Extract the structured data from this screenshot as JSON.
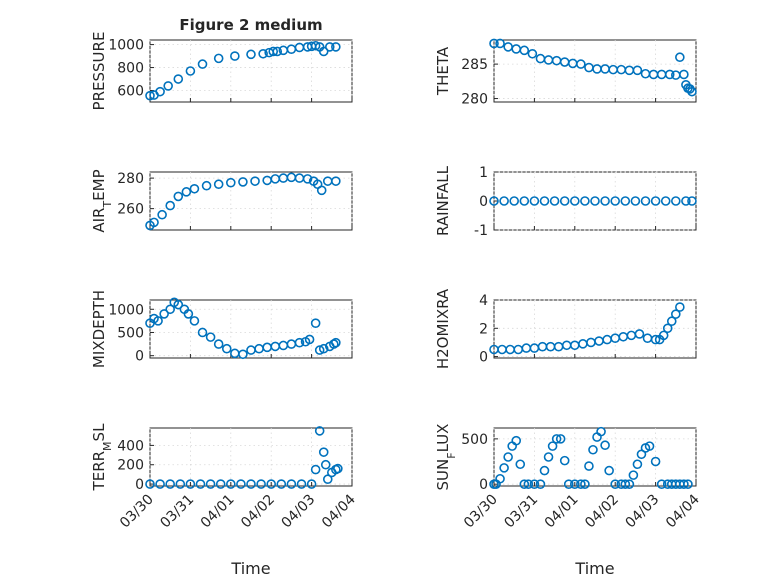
{
  "figure_title": "Figure 2 medium",
  "colors": {
    "series": "#0072BD",
    "axes": "#262626",
    "grid": "#d9d9d9"
  },
  "chart_data": [
    {
      "type": "scatter",
      "title": "Figure 2 medium",
      "ylabel": "PRESSURE",
      "xlabel": "",
      "xticks": [
        "03/30",
        "03/31",
        "04/01",
        "04/02",
        "04/03",
        "04/04"
      ],
      "xlim": [
        0,
        5
      ],
      "ylim": [
        500,
        1040
      ],
      "yticks": [
        600,
        800,
        1000
      ],
      "grid": true,
      "x": [
        0.0,
        0.1,
        0.25,
        0.45,
        0.7,
        1.0,
        1.3,
        1.7,
        2.1,
        2.5,
        2.8,
        2.95,
        3.05,
        3.15,
        3.3,
        3.5,
        3.7,
        3.9,
        4.0,
        4.1,
        4.2,
        4.3,
        4.45,
        4.6
      ],
      "y": [
        555,
        560,
        590,
        640,
        700,
        770,
        830,
        880,
        900,
        915,
        920,
        930,
        940,
        940,
        950,
        960,
        975,
        980,
        985,
        990,
        980,
        940,
        980,
        980
      ]
    },
    {
      "type": "scatter",
      "title": "",
      "ylabel": "THETA",
      "xlabel": "",
      "xticks": [
        "03/30",
        "03/31",
        "04/01",
        "04/02",
        "04/03",
        "04/04"
      ],
      "xlim": [
        0,
        5
      ],
      "ylim": [
        279.5,
        288.5
      ],
      "yticks": [
        280,
        285
      ],
      "grid": true,
      "x": [
        0.0,
        0.15,
        0.35,
        0.55,
        0.75,
        0.95,
        1.15,
        1.35,
        1.55,
        1.75,
        1.95,
        2.15,
        2.35,
        2.55,
        2.75,
        2.95,
        3.15,
        3.35,
        3.55,
        3.75,
        3.95,
        4.15,
        4.35,
        4.5,
        4.6,
        4.7,
        4.75,
        4.8,
        4.85,
        4.9
      ],
      "y": [
        288.0,
        288.0,
        287.5,
        287.2,
        287.0,
        286.5,
        285.8,
        285.6,
        285.5,
        285.3,
        285.1,
        285.0,
        284.5,
        284.3,
        284.3,
        284.2,
        284.2,
        284.1,
        284.1,
        283.6,
        283.5,
        283.5,
        283.5,
        283.4,
        286.0,
        283.5,
        282.0,
        281.5,
        281.4,
        281.0
      ]
    },
    {
      "type": "scatter",
      "title": "",
      "ylabel": "AIR_TEMP",
      "xlabel": "",
      "xticks": [
        "03/30",
        "03/31",
        "04/01",
        "04/02",
        "04/03",
        "04/04"
      ],
      "xlim": [
        0,
        5
      ],
      "ylim": [
        246,
        284
      ],
      "yticks": [
        260,
        280
      ],
      "grid": true,
      "x": [
        0.0,
        0.1,
        0.3,
        0.5,
        0.7,
        0.9,
        1.1,
        1.4,
        1.7,
        2.0,
        2.3,
        2.6,
        2.9,
        3.1,
        3.3,
        3.5,
        3.7,
        3.9,
        4.05,
        4.15,
        4.25,
        4.4,
        4.6
      ],
      "y": [
        249,
        251,
        256,
        262,
        268,
        271,
        273,
        275,
        276,
        277,
        277.5,
        278,
        278.5,
        279.5,
        280,
        280.5,
        280,
        279.5,
        278,
        276,
        272,
        278,
        278
      ]
    },
    {
      "type": "scatter",
      "title": "",
      "ylabel": "RAINFALL",
      "xlabel": "",
      "xticks": [
        "03/30",
        "03/31",
        "04/01",
        "04/02",
        "04/03",
        "04/04"
      ],
      "xlim": [
        0,
        5
      ],
      "ylim": [
        -1,
        1
      ],
      "yticks": [
        -1,
        0,
        1
      ],
      "grid": true,
      "x": [
        0.0,
        0.25,
        0.5,
        0.75,
        1.0,
        1.25,
        1.5,
        1.75,
        2.0,
        2.25,
        2.5,
        2.75,
        3.0,
        3.25,
        3.5,
        3.75,
        4.0,
        4.25,
        4.5,
        4.75,
        4.9
      ],
      "y": [
        0,
        0,
        0,
        0,
        0,
        0,
        0,
        0,
        0,
        0,
        0,
        0,
        0,
        0,
        0,
        0,
        0,
        0,
        0,
        0,
        0
      ]
    },
    {
      "type": "scatter",
      "title": "",
      "ylabel": "MIXDEPTH",
      "xlabel": "",
      "xticks": [
        "03/30",
        "03/31",
        "04/01",
        "04/02",
        "04/03",
        "04/04"
      ],
      "xlim": [
        0,
        5
      ],
      "ylim": [
        -50,
        1200
      ],
      "yticks": [
        0,
        500,
        1000
      ],
      "grid": true,
      "x": [
        0.0,
        0.1,
        0.2,
        0.35,
        0.5,
        0.6,
        0.7,
        0.85,
        0.95,
        1.1,
        1.3,
        1.5,
        1.7,
        1.9,
        2.1,
        2.3,
        2.5,
        2.7,
        2.9,
        3.1,
        3.3,
        3.5,
        3.7,
        3.85,
        3.95,
        4.1,
        4.2,
        4.3,
        4.45,
        4.55,
        4.6
      ],
      "y": [
        700,
        800,
        750,
        900,
        1000,
        1150,
        1100,
        1000,
        900,
        750,
        500,
        400,
        250,
        150,
        50,
        30,
        120,
        150,
        180,
        200,
        220,
        250,
        280,
        300,
        350,
        700,
        120,
        150,
        200,
        250,
        280
      ]
    },
    {
      "type": "scatter",
      "title": "",
      "ylabel": "H2OMIXRA",
      "xlabel": "",
      "xticks": [
        "03/30",
        "03/31",
        "04/01",
        "04/02",
        "04/03",
        "04/04"
      ],
      "xlim": [
        0,
        5
      ],
      "ylim": [
        -0.1,
        4
      ],
      "yticks": [
        0,
        2,
        4
      ],
      "grid": true,
      "x": [
        0.0,
        0.2,
        0.4,
        0.6,
        0.8,
        1.0,
        1.2,
        1.4,
        1.6,
        1.8,
        2.0,
        2.2,
        2.4,
        2.6,
        2.8,
        3.0,
        3.2,
        3.4,
        3.6,
        3.8,
        4.0,
        4.1,
        4.2,
        4.3,
        4.4,
        4.5,
        4.6
      ],
      "y": [
        0.5,
        0.5,
        0.5,
        0.5,
        0.6,
        0.6,
        0.7,
        0.7,
        0.7,
        0.8,
        0.8,
        0.9,
        1.0,
        1.1,
        1.2,
        1.3,
        1.4,
        1.5,
        1.6,
        1.3,
        1.2,
        1.2,
        1.5,
        2.0,
        2.5,
        3.0,
        3.5
      ]
    },
    {
      "type": "scatter",
      "title": "",
      "ylabel": "TERR_MSL",
      "xlabel": "Time",
      "xticks": [
        "03/30",
        "03/31",
        "04/01",
        "04/02",
        "04/03",
        "04/04"
      ],
      "xlim": [
        0,
        5
      ],
      "ylim": [
        -20,
        580
      ],
      "yticks": [
        0,
        200,
        400
      ],
      "grid": true,
      "x": [
        0.0,
        0.25,
        0.5,
        0.75,
        1.0,
        1.25,
        1.5,
        1.75,
        2.0,
        2.25,
        2.5,
        2.75,
        3.0,
        3.25,
        3.5,
        3.75,
        4.0,
        4.1,
        4.2,
        4.3,
        4.35,
        4.4,
        4.5,
        4.6,
        4.65
      ],
      "y": [
        0,
        0,
        0,
        0,
        0,
        0,
        0,
        0,
        0,
        0,
        0,
        0,
        0,
        0,
        0,
        0,
        0,
        150,
        550,
        330,
        200,
        50,
        120,
        150,
        160
      ]
    },
    {
      "type": "scatter",
      "title": "",
      "ylabel": "SUN_FLUX",
      "xlabel": "Time",
      "xticks": [
        "03/30",
        "03/31",
        "04/01",
        "04/02",
        "04/03",
        "04/04"
      ],
      "xlim": [
        0,
        5
      ],
      "ylim": [
        -20,
        620
      ],
      "yticks": [
        0,
        500
      ],
      "grid": true,
      "x": [
        0.0,
        0.05,
        0.15,
        0.25,
        0.35,
        0.45,
        0.55,
        0.65,
        0.75,
        0.85,
        1.0,
        1.15,
        1.25,
        1.35,
        1.45,
        1.55,
        1.65,
        1.75,
        1.85,
        2.0,
        2.15,
        2.25,
        2.35,
        2.45,
        2.55,
        2.65,
        2.75,
        2.85,
        3.0,
        3.15,
        3.25,
        3.35,
        3.45,
        3.55,
        3.65,
        3.75,
        3.85,
        4.0,
        4.15,
        4.3,
        4.4,
        4.5,
        4.6,
        4.7,
        4.8
      ],
      "y": [
        0,
        0,
        60,
        180,
        300,
        420,
        480,
        220,
        0,
        0,
        0,
        0,
        150,
        300,
        420,
        500,
        500,
        260,
        0,
        0,
        0,
        0,
        200,
        380,
        520,
        580,
        430,
        150,
        0,
        0,
        0,
        0,
        100,
        220,
        330,
        400,
        420,
        250,
        0,
        0,
        0,
        0,
        0,
        0,
        0
      ]
    }
  ]
}
